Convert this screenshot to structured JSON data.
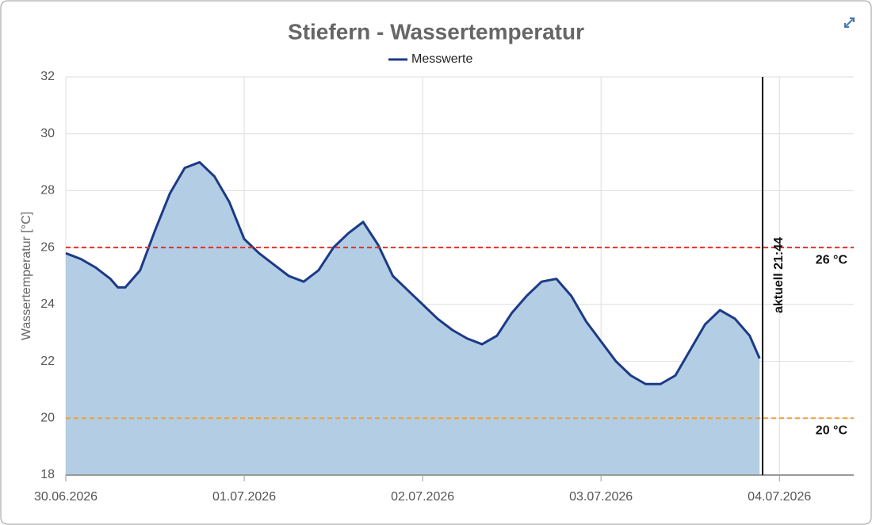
{
  "chart_data": {
    "type": "area",
    "title": "Stiefern - Wassertemperatur",
    "ylabel": "Wassertemperatur [°C]",
    "series": [
      {
        "name": "Messwerte",
        "color": "#1c3a87",
        "fill": "#b3cde4",
        "x": [
          "30.06.2026 00:00",
          "30.06.2026 02:00",
          "30.06.2026 04:00",
          "30.06.2026 06:00",
          "30.06.2026 07:00",
          "30.06.2026 08:00",
          "30.06.2026 10:00",
          "30.06.2026 12:00",
          "30.06.2026 14:00",
          "30.06.2026 16:00",
          "30.06.2026 18:00",
          "30.06.2026 20:00",
          "30.06.2026 22:00",
          "01.07.2026 00:00",
          "01.07.2026 02:00",
          "01.07.2026 04:00",
          "01.07.2026 06:00",
          "01.07.2026 08:00",
          "01.07.2026 10:00",
          "01.07.2026 12:00",
          "01.07.2026 14:00",
          "01.07.2026 16:00",
          "01.07.2026 18:00",
          "01.07.2026 20:00",
          "01.07.2026 22:00",
          "02.07.2026 00:00",
          "02.07.2026 02:00",
          "02.07.2026 04:00",
          "02.07.2026 06:00",
          "02.07.2026 08:00",
          "02.07.2026 10:00",
          "02.07.2026 12:00",
          "02.07.2026 14:00",
          "02.07.2026 16:00",
          "02.07.2026 18:00",
          "02.07.2026 20:00",
          "02.07.2026 22:00",
          "03.07.2026 00:00",
          "03.07.2026 02:00",
          "03.07.2026 04:00",
          "03.07.2026 06:00",
          "03.07.2026 08:00",
          "03.07.2026 10:00",
          "03.07.2026 12:00",
          "03.07.2026 14:00",
          "03.07.2026 16:00",
          "03.07.2026 18:00",
          "03.07.2026 20:00",
          "03.07.2026 21:20"
        ],
        "values": [
          25.8,
          25.6,
          25.3,
          24.9,
          24.6,
          24.6,
          25.2,
          26.6,
          27.9,
          28.8,
          29.0,
          28.5,
          27.6,
          26.3,
          25.8,
          25.4,
          25.0,
          24.8,
          25.2,
          26.0,
          26.5,
          26.9,
          26.1,
          25.0,
          24.5,
          24.0,
          23.5,
          23.1,
          22.8,
          22.6,
          22.9,
          23.7,
          24.3,
          24.8,
          24.9,
          24.3,
          23.4,
          22.7,
          22.0,
          21.5,
          21.2,
          21.2,
          21.5,
          22.4,
          23.3,
          23.8,
          23.5,
          22.9,
          22.1
        ]
      }
    ],
    "xlim": [
      "30.06.2026 00:00",
      "04.07.2026 10:00"
    ],
    "xticks": [
      "30.06.2026",
      "01.07.2026",
      "02.07.2026",
      "03.07.2026",
      "04.07.2026"
    ],
    "ylim": [
      18,
      32
    ],
    "yticks": [
      18,
      20,
      22,
      24,
      26,
      28,
      30,
      32
    ],
    "grid": true,
    "thresholds": [
      {
        "value": 26,
        "label": "26 °C",
        "color": "#e0312b"
      },
      {
        "value": 20,
        "label": "20 °C",
        "color": "#f0a030"
      }
    ],
    "marker": {
      "x": "03.07.2026 21:44",
      "label": "aktuell 21:44",
      "color": "#111111"
    }
  }
}
